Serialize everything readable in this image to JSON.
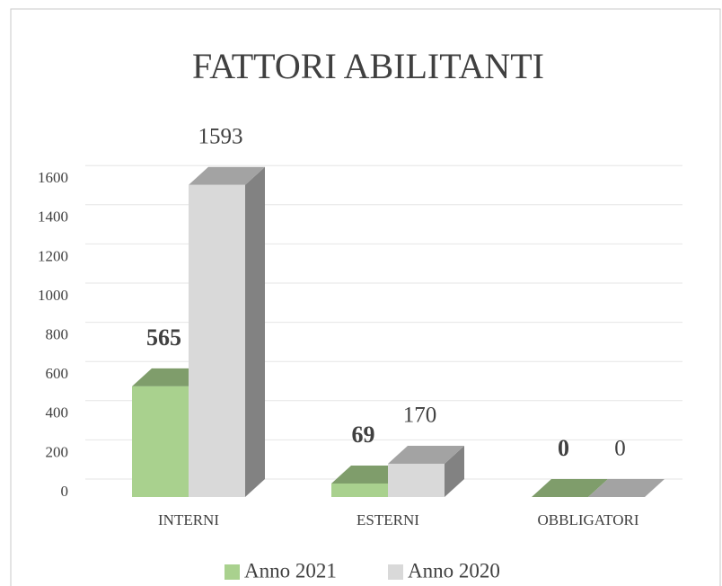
{
  "chart_data": {
    "type": "bar3d",
    "title": "FATTORI ABILITANTI",
    "categories": [
      "INTERNI",
      "ESTERNI",
      "OBBLIGATORI"
    ],
    "series": [
      {
        "name": "Anno 2021",
        "color": "#a9d18e",
        "values": [
          565,
          69,
          0
        ]
      },
      {
        "name": "Anno 2020",
        "color": "#d9d9d9",
        "values": [
          1593,
          170,
          0
        ]
      }
    ],
    "ylim": [
      0,
      1600
    ],
    "yticks": [
      0,
      200,
      400,
      600,
      800,
      1000,
      1200,
      1400,
      1600
    ],
    "grid": true,
    "legend": "bottom"
  }
}
